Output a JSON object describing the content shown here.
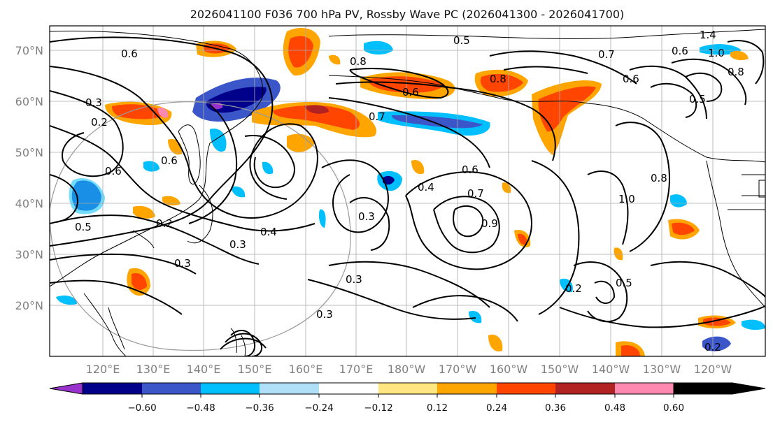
{
  "title": "2026041100 F036 700 hPa PV, Rossby Wave PC (2026041300 - 2026041700)",
  "lat_axis": [
    "70°N",
    "60°N",
    "50°N",
    "40°N",
    "30°N",
    "20°N"
  ],
  "lon_axis": [
    "120°E",
    "130°E",
    "140°E",
    "150°E",
    "160°E",
    "170°E",
    "180°W",
    "170°W",
    "160°W",
    "150°W",
    "140°W",
    "130°W",
    "120°W"
  ],
  "colorbar": {
    "ticks": [
      "−0.60",
      "−0.48",
      "−0.36",
      "−0.24",
      "−0.12",
      "0.12",
      "0.24",
      "0.36",
      "0.48",
      "0.60"
    ],
    "colors": [
      "#9932cc",
      "#00008b",
      "#3a56c8",
      "#00bfff",
      "#b0e0f8",
      "#ffffff",
      "#ffe680",
      "#ffa500",
      "#ff4500",
      "#b22222",
      "#ff88b0"
    ]
  },
  "contour_labels": [
    "0.6",
    "0.3",
    "0.2",
    "0.6",
    "0.8",
    "0.6",
    "0.5",
    "0.7",
    "0.6",
    "0.7",
    "0.8",
    "0.6",
    "0.5",
    "1.4",
    "1.0",
    "0.8",
    "0.6",
    "0.2",
    "0.3",
    "0.4",
    "0.6",
    "0.4",
    "0.7",
    "0.9",
    "0.8",
    "1.0",
    "0.3",
    "0.5",
    "0.3",
    "0.2",
    "0.3",
    "0.3",
    "0.2",
    "0.5"
  ]
}
